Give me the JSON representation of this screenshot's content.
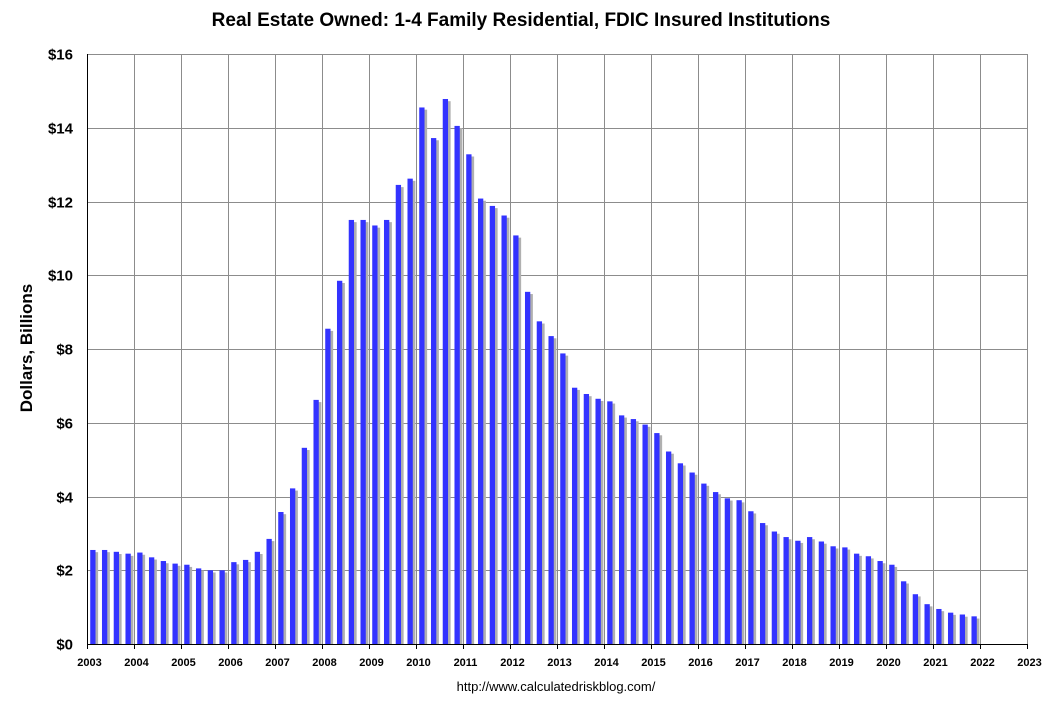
{
  "chart_data": {
    "type": "bar",
    "title": "Real Estate Owned: 1-4 Family Residential, FDIC Insured Institutions",
    "xlabel": "",
    "ylabel": "Dollars, Billions",
    "source": "http://www.calculatedriskblog.com/",
    "ylim": [
      0,
      16
    ],
    "y_ticks": [
      {
        "value": 0,
        "label": "$0"
      },
      {
        "value": 2,
        "label": "$2"
      },
      {
        "value": 4,
        "label": "$4"
      },
      {
        "value": 6,
        "label": "$6"
      },
      {
        "value": 8,
        "label": "$8"
      },
      {
        "value": 10,
        "label": "$10"
      },
      {
        "value": 12,
        "label": "$12"
      },
      {
        "value": 14,
        "label": "$14"
      },
      {
        "value": 16,
        "label": "$16"
      }
    ],
    "x_ticks": [
      "2003",
      "2004",
      "2005",
      "2006",
      "2007",
      "2008",
      "2009",
      "2010",
      "2011",
      "2012",
      "2013",
      "2014",
      "2015",
      "2016",
      "2017",
      "2018",
      "2019",
      "2020",
      "2021",
      "2022",
      "2023"
    ],
    "grid": true,
    "bar_color": "#3333ff",
    "shadow_color": "#b0b0b0",
    "series": [
      {
        "values": [
          2.55,
          2.55,
          2.5,
          2.45,
          2.48,
          2.35,
          2.25,
          2.18,
          2.15,
          2.05,
          2.0,
          2.0,
          2.22,
          2.28,
          2.5,
          2.85,
          3.58,
          4.22,
          5.32,
          6.62,
          8.55,
          9.85,
          11.5,
          11.5,
          11.35,
          11.5,
          12.45,
          12.62,
          14.55,
          13.72,
          14.78,
          14.05,
          13.28,
          12.08,
          11.88,
          11.62,
          11.08,
          9.55,
          8.75,
          8.35,
          7.88,
          6.95,
          6.78,
          6.65,
          6.58,
          6.2,
          6.1,
          5.95,
          5.72,
          5.22,
          4.9,
          4.65,
          4.35,
          4.12,
          3.95,
          3.9,
          3.6,
          3.28,
          3.05,
          2.9,
          2.8,
          2.9,
          2.78,
          2.65,
          2.62,
          2.45,
          2.38,
          2.25,
          2.15,
          1.7,
          1.35,
          1.08,
          0.95,
          0.85,
          0.8,
          0.75
        ]
      }
    ]
  }
}
